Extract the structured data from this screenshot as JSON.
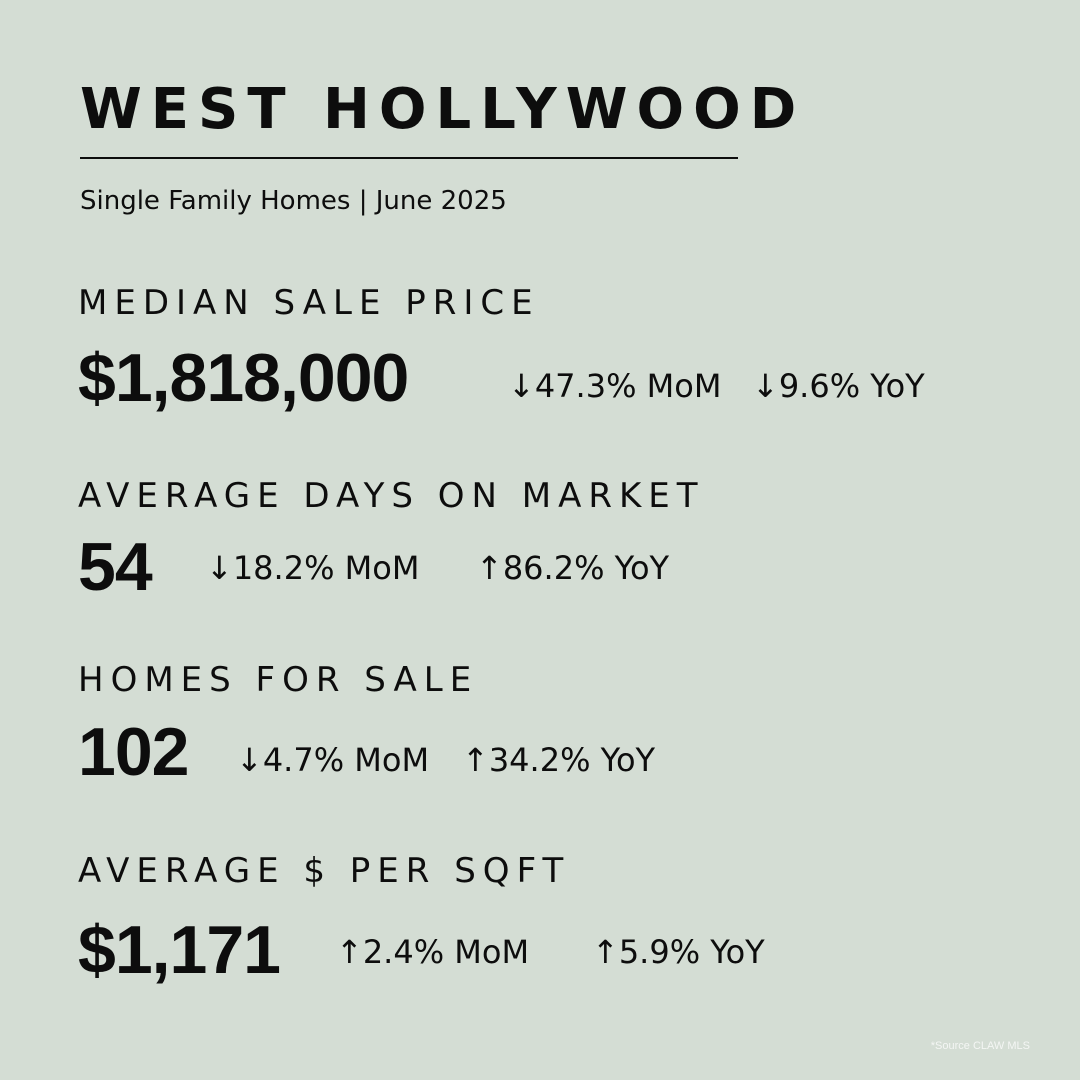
{
  "header": {
    "title": "WEST HOLLYWOOD",
    "subtitle": "Single Family Homes | June 2025"
  },
  "metrics": [
    {
      "label": "MEDIAN SALE PRICE",
      "value": "$1,818,000",
      "mom": "↓47.3% MoM",
      "yoy": "↓9.6% YoY"
    },
    {
      "label": "AVERAGE DAYS ON MARKET",
      "value": "54",
      "mom": "↓18.2% MoM",
      "yoy": "↑86.2% YoY"
    },
    {
      "label": "HOMES FOR SALE",
      "value": "102",
      "mom": "↓4.7% MoM",
      "yoy": "↑34.2% YoY"
    },
    {
      "label": "AVERAGE $ PER SQFT",
      "value": "$1,171",
      "mom": "↑2.4% MoM",
      "yoy": "↑5.9% YoY"
    }
  ],
  "footer": {
    "source": "*Source CLAW MLS"
  },
  "colors": {
    "background": "#d4ddd4",
    "text": "#0d0d0d",
    "source_text": "#f4f6f4"
  }
}
